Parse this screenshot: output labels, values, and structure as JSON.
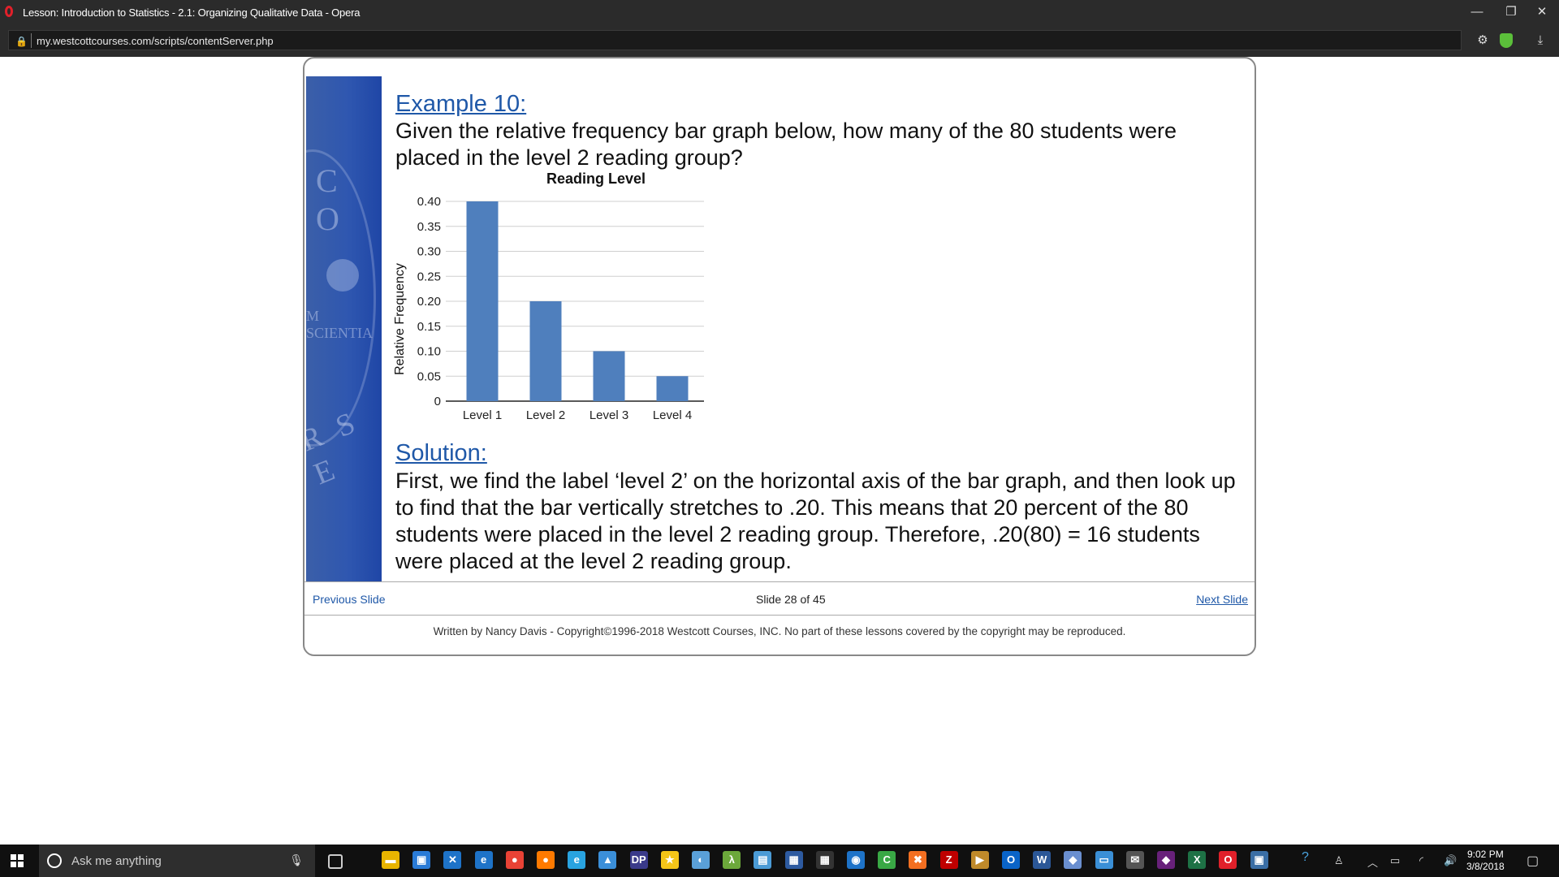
{
  "browser": {
    "window_title": "Lesson: Introduction to Statistics - 2.1: Organizing Qualitative Data - Opera",
    "url": "my.westcottcourses.com/scripts/contentServer.php",
    "controls": {
      "minimize": "—",
      "restore": "❐",
      "close": "✕"
    },
    "toolbar": {
      "settings": "⚙",
      "download": "⤓"
    }
  },
  "sidebar": {
    "watermark_top": "C O",
    "watermark_mid": "M SCIENTIA",
    "watermark_bottom": "R S E"
  },
  "lesson": {
    "example_heading": "Example 10:",
    "question": "Given the relative frequency bar graph below, how many of the 80 students were placed in the level 2 reading group?",
    "solution_heading": "Solution:",
    "solution": "First, we find the label ‘level 2’ on the horizontal axis of the bar graph, and then look up to find that the bar vertically stretches to .20.  This means that 20 percent of the 80 students were placed in the level 2 reading group.  Therefore, .20(80) = 16 students were placed at the level 2 reading group."
  },
  "chart_data": {
    "type": "bar",
    "title": "Reading Level",
    "xlabel": "",
    "ylabel": "Relative Frequency",
    "categories": [
      "Level 1",
      "Level 2",
      "Level 3",
      "Level 4"
    ],
    "values": [
      0.4,
      0.2,
      0.1,
      0.05
    ],
    "yticks": [
      "0",
      "0.05",
      "0.10",
      "0.15",
      "0.20",
      "0.25",
      "0.30",
      "0.35",
      "0.40"
    ],
    "ylim": [
      0,
      0.4
    ],
    "grid": true,
    "bar_color": "#4f7fbd"
  },
  "navigation": {
    "previous": "Previous Slide",
    "counter": "Slide 28 of 45",
    "next": "Next Slide"
  },
  "footer": {
    "copyright": "Written by Nancy Davis - Copyright©1996-2018 Westcott Courses, INC. No part of these lessons covered by the copyright may be reproduced."
  },
  "taskbar": {
    "search_placeholder": "Ask me anything",
    "time": "9:02 PM",
    "date": "3/8/2018",
    "apps": [
      {
        "name": "file-explorer-icon",
        "glyph": "▬",
        "color": "#e8b400"
      },
      {
        "name": "store-icon",
        "glyph": "▣",
        "color": "#2a7bd6"
      },
      {
        "name": "xmind-icon",
        "glyph": "✕",
        "color": "#1e73c8"
      },
      {
        "name": "edge-icon",
        "glyph": "e",
        "color": "#1e73c8"
      },
      {
        "name": "chrome-icon",
        "glyph": "●",
        "color": "#e94235"
      },
      {
        "name": "firefox-icon",
        "glyph": "●",
        "color": "#ff7a00"
      },
      {
        "name": "ie-icon",
        "glyph": "e",
        "color": "#29a3e0"
      },
      {
        "name": "app-icon",
        "glyph": "▲",
        "color": "#3b8fd9"
      },
      {
        "name": "dp-icon",
        "glyph": "DP",
        "color": "#3a3a8a"
      },
      {
        "name": "star-icon",
        "glyph": "★",
        "color": "#f5c518"
      },
      {
        "name": "paint-icon",
        "glyph": "◐",
        "color": "#5aa0d8"
      },
      {
        "name": "lambda-icon",
        "glyph": "λ",
        "color": "#6ca83b"
      },
      {
        "name": "notes-icon",
        "glyph": "▤",
        "color": "#4b9bd6"
      },
      {
        "name": "network-icon",
        "glyph": "▦",
        "color": "#2d5aa0"
      },
      {
        "name": "calculator-icon",
        "glyph": "▦",
        "color": "#333333"
      },
      {
        "name": "outlook-app-icon",
        "glyph": "◉",
        "color": "#1e73c8"
      },
      {
        "name": "camtasia-icon",
        "glyph": "C",
        "color": "#39a845"
      },
      {
        "name": "xampp-icon",
        "glyph": "✖",
        "color": "#f36f21"
      },
      {
        "name": "filezilla-icon",
        "glyph": "Z",
        "color": "#bf0000"
      },
      {
        "name": "media-icon",
        "glyph": "▶",
        "color": "#c08a2a"
      },
      {
        "name": "outlook-icon",
        "glyph": "O",
        "color": "#0a64c8"
      },
      {
        "name": "word-icon",
        "glyph": "W",
        "color": "#2b5797"
      },
      {
        "name": "people-icon",
        "glyph": "◆",
        "color": "#6a8fd0"
      },
      {
        "name": "remote-icon",
        "glyph": "▭",
        "color": "#3a8fd6"
      },
      {
        "name": "mail-icon",
        "glyph": "✉",
        "color": "#555555"
      },
      {
        "name": "visual-studio-icon",
        "glyph": "◆",
        "color": "#68217a"
      },
      {
        "name": "excel-icon",
        "glyph": "X",
        "color": "#1e7145"
      },
      {
        "name": "opera-icon",
        "glyph": "O",
        "color": "#e0202a"
      },
      {
        "name": "teamviewer-icon",
        "glyph": "▣",
        "color": "#3a6ea5"
      }
    ]
  }
}
